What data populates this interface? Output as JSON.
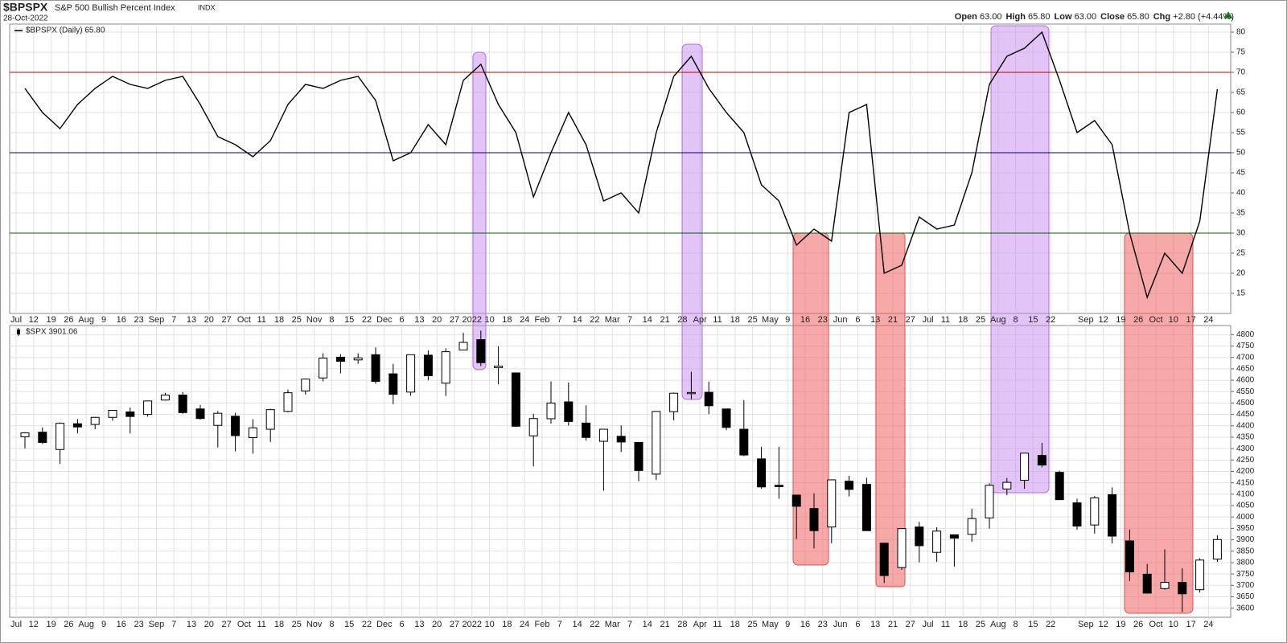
{
  "header": {
    "symbol": "$BPSPX",
    "name": "S&P 500 Bullish Percent Index",
    "exchange": "INDX",
    "date": "28-Oct-2022",
    "stats": [
      {
        "label": "Open",
        "value": "63.00"
      },
      {
        "label": "High",
        "value": "65.80"
      },
      {
        "label": "Low",
        "value": "63.00"
      },
      {
        "label": "Close",
        "value": "65.80"
      },
      {
        "label": "Chg",
        "value": "+2.80 (+4.44%)"
      }
    ]
  },
  "chart_data": [
    {
      "type": "line",
      "categories": [
        "Jul",
        "12",
        "19",
        "26",
        "Aug",
        "9",
        "16",
        "23",
        "Sep",
        "7",
        "13",
        "20",
        "27",
        "Oct",
        "11",
        "18",
        "25",
        "Nov",
        "8",
        "15",
        "22",
        "Dec",
        "6",
        "13",
        "20",
        "27",
        "2022",
        "10",
        "18",
        "24",
        "Feb",
        "7",
        "14",
        "22",
        "Mar",
        "7",
        "14",
        "21",
        "28",
        "Apr",
        "11",
        "18",
        "25",
        "May",
        "9",
        "16",
        "23",
        "Jun",
        "6",
        "13",
        "21",
        "27",
        "Jul",
        "11",
        "18",
        "25",
        "Aug",
        "8",
        "15",
        "22",
        null,
        "Sep",
        "12",
        "19",
        "26",
        "Oct",
        "10",
        "17",
        "24"
      ],
      "series": [
        {
          "name": "$BPSPX (Daily) 65.80",
          "color": "#000000",
          "values": [
            66,
            60,
            56,
            62,
            66,
            69,
            67,
            66,
            68,
            69,
            62,
            54,
            52,
            49,
            53,
            62,
            67,
            66,
            68,
            69,
            63,
            48,
            50,
            57,
            52,
            68,
            72,
            62,
            55,
            39,
            50,
            60,
            52,
            38,
            40,
            35,
            55,
            69,
            74,
            66,
            60,
            55,
            42,
            38,
            27,
            31,
            28,
            60,
            62,
            20,
            22,
            34,
            31,
            32,
            45,
            67,
            74,
            76,
            80,
            68,
            55,
            58,
            52,
            30,
            14,
            25,
            20,
            33,
            65.8
          ]
        }
      ],
      "ylim": [
        10,
        82
      ],
      "yticks": [
        15,
        20,
        25,
        30,
        35,
        40,
        45,
        50,
        55,
        60,
        65,
        70,
        75,
        80
      ],
      "hlines": [
        {
          "value": 70,
          "color": "#c00000"
        },
        {
          "value": 50,
          "color": "#000080"
        },
        {
          "value": 30,
          "color": "#006400"
        }
      ],
      "grid": true
    },
    {
      "type": "candlestick",
      "categories": [
        "Jul",
        "12",
        "19",
        "26",
        "Aug",
        "9",
        "16",
        "23",
        "Sep",
        "7",
        "13",
        "20",
        "27",
        "Oct",
        "11",
        "18",
        "25",
        "Nov",
        "8",
        "15",
        "22",
        "Dec",
        "6",
        "13",
        "20",
        "27",
        "2022",
        "10",
        "18",
        "24",
        "Feb",
        "7",
        "14",
        "22",
        "Mar",
        "7",
        "14",
        "21",
        "28",
        "Apr",
        "11",
        "18",
        "25",
        "May",
        "9",
        "16",
        "23",
        "Jun",
        "6",
        "13",
        "21",
        "27",
        "Jul",
        "11",
        "18",
        "25",
        "Aug",
        "8",
        "15",
        "22",
        null,
        "Sep",
        "12",
        "19",
        "26",
        "Oct",
        "10",
        "17",
        "24"
      ],
      "series": [
        {
          "name": "$SPX 3901.06",
          "color": "#000000",
          "open": [
            4352,
            4372,
            4296,
            4409,
            4406,
            4437,
            4461,
            4450,
            4513,
            4535,
            4474,
            4402,
            4442,
            4348,
            4385,
            4463,
            4553,
            4610,
            4701,
            4689,
            4712,
            4628,
            4548,
            4710,
            4587,
            4733,
            4778,
            4655,
            4632,
            4356,
            4431,
            4505,
            4412,
            4332,
            4354,
            4327,
            4188,
            4462,
            4541,
            4547,
            4474,
            4385,
            4255,
            4139,
            4096,
            4037,
            3956,
            4157,
            4143,
            3885,
            3778,
            3956,
            3845,
            3922,
            3924,
            3996,
            4123,
            4161,
            4270,
            4196,
            4062,
            3965,
            4098,
            3895,
            3749,
            3686,
            3713,
            3681,
            3815
          ],
          "high": [
            4372,
            4393,
            4415,
            4429,
            4440,
            4468,
            4480,
            4510,
            4545,
            4548,
            4492,
            4465,
            4457,
            4429,
            4475,
            4559,
            4608,
            4718,
            4714,
            4718,
            4744,
            4672,
            4713,
            4731,
            4740,
            4808,
            4818,
            4749,
            4632,
            4453,
            4595,
            4590,
            4490,
            4385,
            4402,
            4327,
            4465,
            4546,
            4637,
            4593,
            4475,
            4512,
            4308,
            4308,
            4096,
            4104,
            4165,
            4181,
            4172,
            3885,
            3950,
            3979,
            3955,
            3922,
            4036,
            4148,
            4171,
            4280,
            4325,
            4203,
            4080,
            4092,
            4130,
            3945,
            3794,
            3858,
            3775,
            3819,
            3920
          ],
          "low": [
            4300,
            4320,
            4233,
            4367,
            4385,
            4422,
            4367,
            4440,
            4511,
            4453,
            4427,
            4305,
            4288,
            4278,
            4329,
            4459,
            4537,
            4595,
            4630,
            4672,
            4585,
            4495,
            4532,
            4600,
            4531,
            4733,
            4662,
            4582,
            4395,
            4222,
            4410,
            4401,
            4335,
            4115,
            4285,
            4157,
            4162,
            4424,
            4517,
            4451,
            4381,
            4267,
            4124,
            4080,
            3903,
            3862,
            3885,
            4090,
            3939,
            3710,
            3769,
            3801,
            3803,
            3783,
            3891,
            3949,
            4095,
            4123,
            4218,
            4076,
            3944,
            3927,
            3884,
            3719,
            3664,
            3681,
            3583,
            3669,
            3803
          ],
          "close": [
            4369,
            4327,
            4411,
            4395,
            4437,
            4468,
            4441,
            4509,
            4535,
            4458,
            4432,
            4455,
            4357,
            4391,
            4471,
            4545,
            4605,
            4697,
            4683,
            4698,
            4595,
            4538,
            4712,
            4620,
            4725,
            4766,
            4677,
            4662,
            4398,
            4432,
            4500,
            4419,
            4349,
            4385,
            4329,
            4204,
            4463,
            4543,
            4546,
            4488,
            4393,
            4272,
            4132,
            4133,
            4047,
            3940,
            4163,
            4121,
            3940,
            3743,
            3949,
            3874,
            3938,
            3907,
            3993,
            4139,
            4152,
            4280,
            4228,
            4076,
            3960,
            4084,
            3916,
            3759,
            3666,
            3713,
            3663,
            3811,
            3901
          ]
        }
      ],
      "ylim": [
        3560,
        4840
      ],
      "yticks": [
        3600,
        3650,
        3700,
        3750,
        3800,
        3850,
        3900,
        3950,
        4000,
        4050,
        4100,
        4150,
        4200,
        4250,
        4300,
        4350,
        4400,
        4450,
        4500,
        4550,
        4600,
        4650,
        4700,
        4750,
        4800
      ],
      "grid": true
    }
  ]
}
